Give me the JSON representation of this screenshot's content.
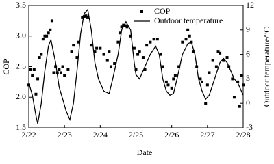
{
  "chart_data": {
    "type": "combo",
    "xlabel": "Date",
    "ylabel": "COP",
    "y2label": "Outdoor temperature/°C",
    "xlim": [
      22,
      28
    ],
    "xticks": [
      {
        "value": 22,
        "label": "2/22"
      },
      {
        "value": 23,
        "label": "2/23"
      },
      {
        "value": 24,
        "label": "2/24"
      },
      {
        "value": 25,
        "label": "2/25"
      },
      {
        "value": 26,
        "label": "2/26"
      },
      {
        "value": 27,
        "label": "2/27"
      },
      {
        "value": 28,
        "label": "2/28"
      }
    ],
    "ylim": [
      1.5,
      3.5
    ],
    "yticks": [
      1.5,
      {
        "value": 2,
        "label": "2.0"
      },
      2.5,
      {
        "value": 3,
        "label": "3.0"
      },
      3.5
    ],
    "y2lim": [
      -3,
      12
    ],
    "y2ticks": [
      -3,
      0,
      3,
      6,
      9,
      12
    ],
    "legend": "upper right",
    "series": [
      {
        "name": "COP",
        "type": "scatter",
        "color": "#000000",
        "x": [
          22.0,
          22.05,
          22.1,
          22.15,
          22.2,
          22.25,
          22.3,
          22.35,
          22.4,
          22.45,
          22.5,
          22.55,
          22.6,
          22.65,
          22.7,
          22.75,
          22.8,
          22.85,
          22.9,
          22.95,
          23.0,
          23.1,
          23.2,
          23.25,
          23.35,
          23.4,
          23.5,
          23.55,
          23.6,
          23.65,
          23.75,
          23.85,
          23.9,
          24.0,
          24.1,
          24.2,
          24.25,
          24.3,
          24.4,
          24.5,
          24.55,
          24.6,
          24.65,
          24.7,
          24.75,
          24.85,
          24.95,
          25.0,
          25.05,
          25.1,
          25.2,
          25.25,
          25.3,
          25.4,
          25.5,
          25.6,
          25.7,
          25.75,
          25.85,
          25.9,
          26.0,
          26.05,
          26.1,
          26.2,
          26.3,
          26.4,
          26.45,
          26.5,
          26.55,
          26.6,
          26.7,
          26.8,
          26.85,
          26.95,
          27.0,
          27.05,
          27.15,
          27.25,
          27.3,
          27.35,
          27.45,
          27.55,
          27.6,
          27.7,
          27.75,
          27.85,
          27.9,
          27.95,
          28.0
        ],
        "values": [
          2.2,
          2.45,
          2.35,
          2.45,
          2.05,
          2.3,
          2.65,
          2.7,
          2.95,
          3.0,
          3.0,
          3.05,
          3.1,
          3.25,
          2.4,
          2.5,
          2.4,
          2.45,
          2.4,
          2.5,
          2.35,
          2.45,
          2.75,
          2.85,
          2.65,
          2.9,
          3.3,
          3.32,
          3.33,
          3.3,
          2.85,
          2.75,
          2.8,
          2.8,
          2.7,
          2.6,
          2.75,
          2.5,
          2.55,
          2.9,
          3.05,
          3.15,
          3.18,
          3.17,
          3.15,
          3.0,
          2.8,
          2.45,
          2.7,
          2.75,
          2.65,
          2.45,
          2.85,
          2.9,
          2.95,
          2.95,
          2.7,
          2.5,
          2.25,
          2.2,
          2.15,
          2.3,
          2.35,
          2.5,
          2.9,
          2.95,
          3.1,
          3.0,
          2.9,
          2.75,
          2.5,
          2.3,
          2.25,
          1.9,
          2.2,
          2.4,
          2.6,
          2.5,
          2.75,
          2.72,
          2.6,
          2.65,
          2.5,
          2.3,
          2.0,
          2.25,
          1.85,
          2.35,
          2.2
        ]
      },
      {
        "name": "Outdoor temperature",
        "type": "line",
        "color": "#000000",
        "axis": "y2",
        "x": [
          22.0,
          22.1,
          22.2,
          22.25,
          22.35,
          22.45,
          22.55,
          22.62,
          22.75,
          22.85,
          22.95,
          23.05,
          23.15,
          23.25,
          23.35,
          23.45,
          23.55,
          23.65,
          23.75,
          23.85,
          23.95,
          24.1,
          24.25,
          24.35,
          24.5,
          24.6,
          24.72,
          24.85,
          24.95,
          25.0,
          25.1,
          25.2,
          25.3,
          25.4,
          25.55,
          25.65,
          25.75,
          25.85,
          25.95,
          26.05,
          26.15,
          26.3,
          26.45,
          26.55,
          26.65,
          26.75,
          26.85,
          26.95,
          27.05,
          27.2,
          27.35,
          27.45,
          27.55,
          27.65,
          27.75,
          27.85,
          27.95,
          28.0
        ],
        "values": [
          2.5,
          1.0,
          -1.5,
          -2.5,
          0,
          4,
          7,
          7.8,
          5,
          2,
          0.5,
          -1,
          -2,
          0,
          4,
          8.5,
          11,
          11.5,
          9,
          5,
          3,
          1.5,
          1.2,
          3,
          6,
          9,
          10,
          9,
          5,
          3.5,
          3,
          4,
          5,
          6,
          7,
          6,
          3,
          1.5,
          1,
          1.2,
          3,
          6,
          7.3,
          7.5,
          6,
          3,
          1.5,
          0.5,
          1,
          3,
          5,
          5.5,
          5,
          4,
          3,
          2.5,
          1.5,
          1
        ]
      }
    ]
  }
}
